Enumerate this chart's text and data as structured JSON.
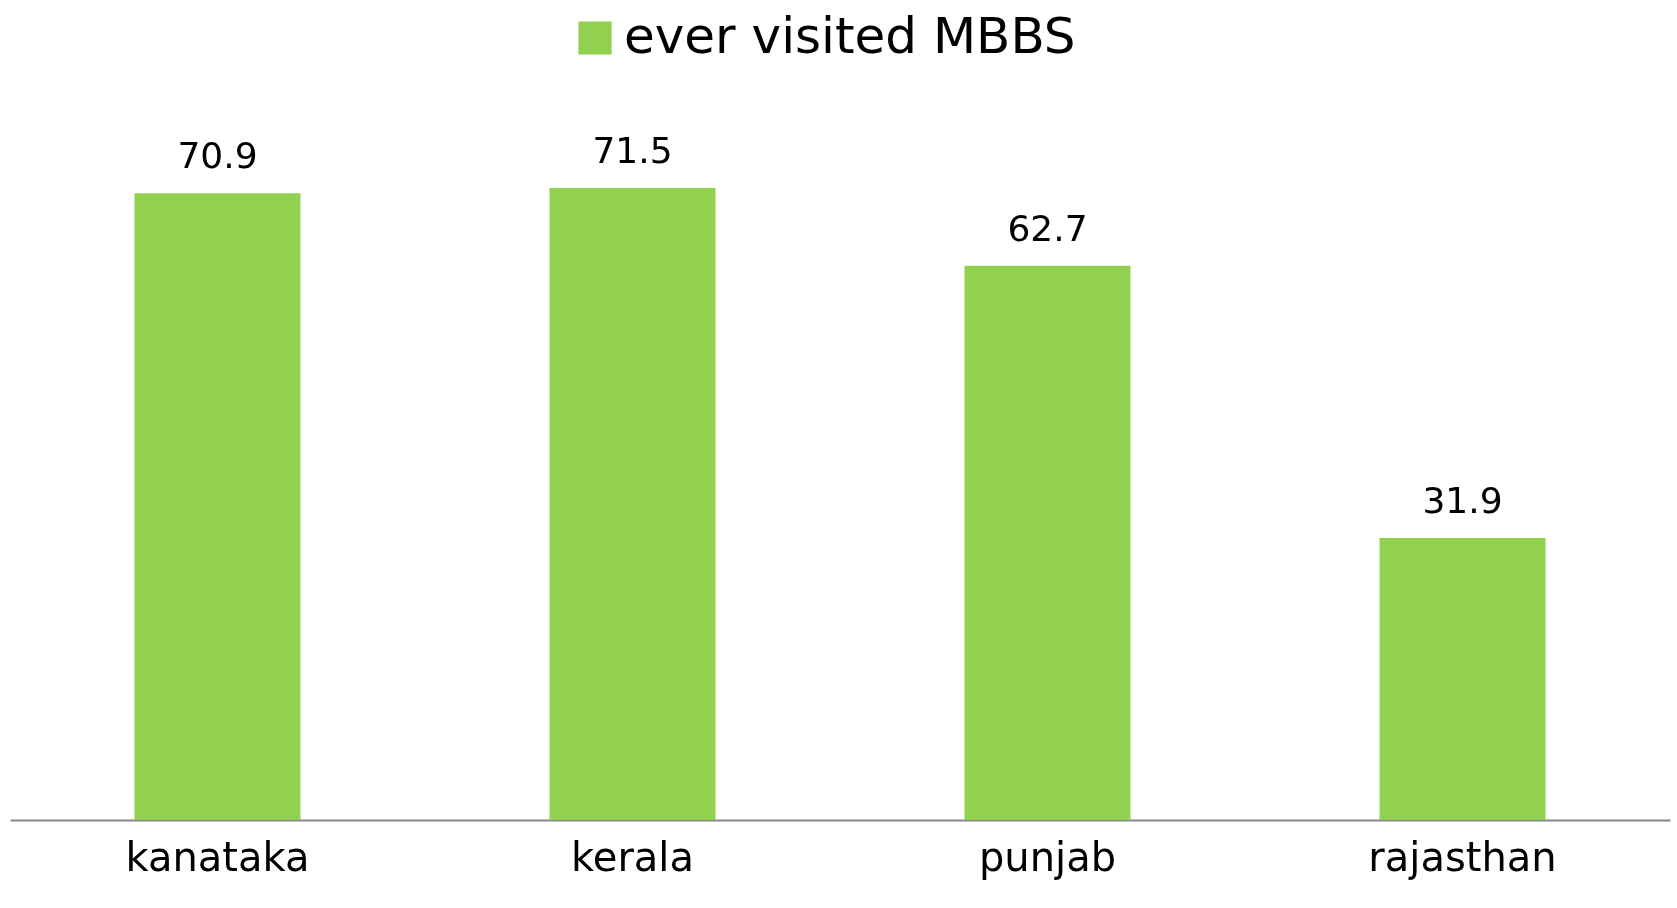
{
  "chart_data": {
    "type": "bar",
    "categories": [
      "kanataka",
      "kerala",
      "punjab",
      "rajasthan"
    ],
    "series": [
      {
        "name": "ever visited MBBS",
        "color": "#92d050",
        "values": [
          70.9,
          71.5,
          62.7,
          31.9
        ]
      }
    ],
    "data_labels": true,
    "legend": "top",
    "grid": false
  }
}
